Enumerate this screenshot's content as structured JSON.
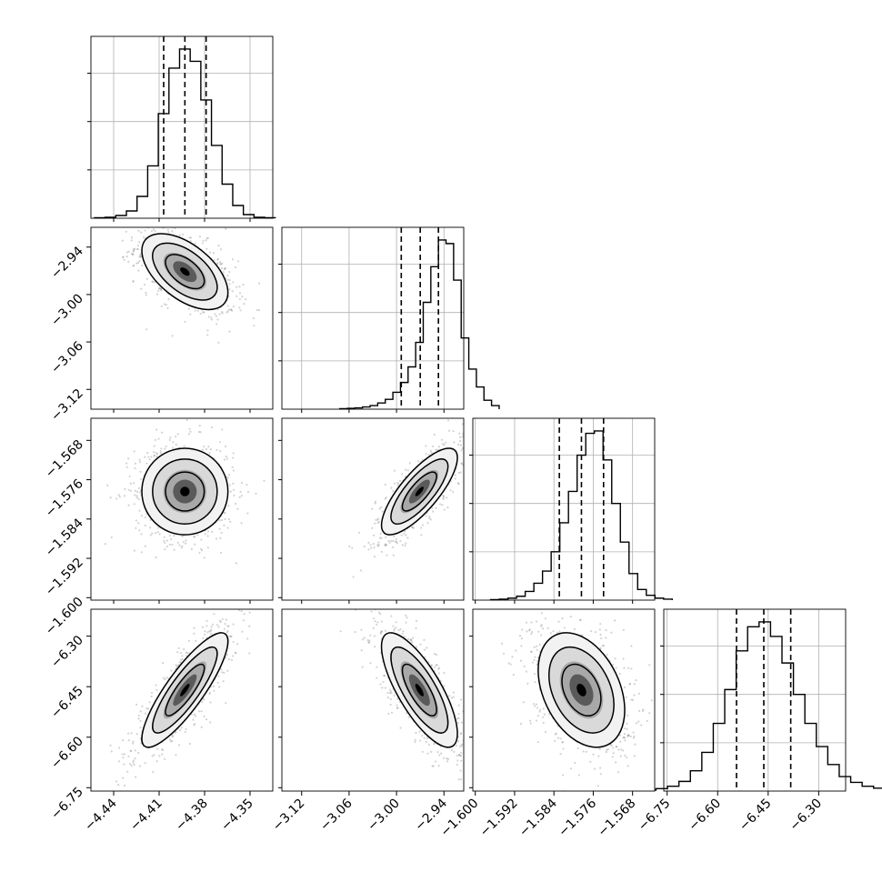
{
  "chart_data": {
    "type": "corner",
    "n_params": 4,
    "grid": true,
    "colors": {
      "axes": "#000000",
      "grid": "#b0b0b0",
      "hist": "#000000",
      "quantile": "#000000",
      "points": "#808080"
    },
    "params": [
      {
        "range": [
          -4.455,
          -4.335
        ],
        "ticks": [
          -4.44,
          -4.41,
          -4.38,
          -4.35
        ],
        "tick_labels": [
          "−4.44",
          "−4.41",
          "−4.38",
          "−4.35"
        ],
        "mean": -4.393,
        "sd": 0.0142,
        "quantiles": [
          -4.407,
          -4.393,
          -4.379
        ]
      },
      {
        "range": [
          -3.145,
          -2.915
        ],
        "ticks": [
          -3.12,
          -3.06,
          -3.0,
          -2.94
        ],
        "tick_labels": [
          "−3.12",
          "−3.06",
          "−3.00",
          "−2.94"
        ],
        "mean": -2.971,
        "sd": 0.024,
        "quantiles": [
          -2.994,
          -2.97,
          -2.947
        ]
      },
      {
        "range": [
          -1.6005,
          -1.5635
        ],
        "ticks": [
          -1.6,
          -1.592,
          -1.584,
          -1.576,
          -1.568
        ],
        "tick_labels": [
          "−1.600",
          "−1.592",
          "−1.584",
          "−1.576",
          "−1.568"
        ],
        "mean": -1.5784,
        "sd": 0.0044,
        "quantiles": [
          -1.5829,
          -1.5784,
          -1.5739
        ]
      },
      {
        "range": [
          -6.76,
          -6.22
        ],
        "ticks": [
          -6.75,
          -6.6,
          -6.45,
          -6.3
        ],
        "tick_labels": [
          "−6.75",
          "−6.60",
          "−6.45",
          "−6.30"
        ],
        "mean": -6.46,
        "sd": 0.085,
        "quantiles": [
          -6.544,
          -6.463,
          -6.383
        ]
      }
    ],
    "correlations": [
      [
        1.0,
        -0.55,
        0.0,
        0.85
      ],
      [
        -0.55,
        1.0,
        0.78,
        -0.76
      ],
      [
        0.0,
        0.78,
        1.0,
        -0.35
      ],
      [
        0.85,
        -0.76,
        -0.35,
        1.0
      ]
    ],
    "hist_counts": [
      [
        1,
        2,
        6,
        16,
        48,
        115,
        230,
        330,
        372,
        345,
        260,
        160,
        75,
        28,
        8,
        2,
        1
      ],
      [
        1,
        2,
        3,
        5,
        8,
        14,
        22,
        38,
        60,
        95,
        150,
        240,
        320,
        380,
        372,
        290,
        160,
        90,
        50,
        20,
        8
      ],
      [
        1,
        2,
        4,
        8,
        18,
        35,
        60,
        100,
        160,
        225,
        300,
        345,
        350,
        290,
        200,
        120,
        55,
        22,
        10,
        4,
        2
      ],
      [
        2,
        5,
        10,
        20,
        42,
        80,
        140,
        210,
        290,
        340,
        350,
        320,
        265,
        200,
        140,
        92,
        55,
        30,
        18,
        10,
        6
      ]
    ]
  }
}
